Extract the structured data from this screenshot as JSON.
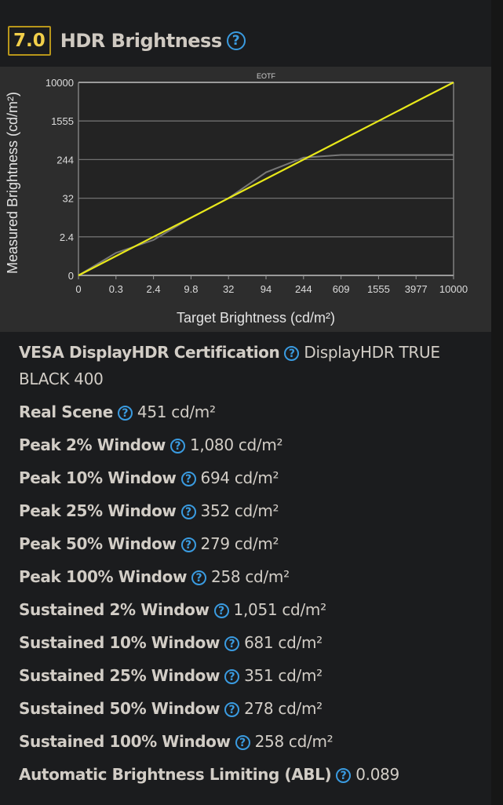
{
  "header": {
    "score": "7.0",
    "title": "HDR Brightness",
    "help_icon": "question-circle-icon"
  },
  "colors": {
    "score_border": "#b8961a",
    "score_text": "#f2cf4a",
    "help": "#3a9be0",
    "target_line": "#e8e81a",
    "measured_line": "#777777"
  },
  "chart_data": {
    "type": "line",
    "title": "EOTF",
    "xlabel": "Target Brightness (cd/m²)",
    "ylabel": "Measured Brightness (cd/m²)",
    "x_ticks": [
      "0",
      "0.3",
      "2.4",
      "9.8",
      "32",
      "94",
      "244",
      "609",
      "1555",
      "3977",
      "10000"
    ],
    "y_ticks": [
      "0",
      "2.4",
      "32",
      "244",
      "1555",
      "10000"
    ],
    "x": [
      0,
      0.3,
      2.4,
      9.8,
      32,
      94,
      244,
      609,
      1555,
      3977,
      10000
    ],
    "grid": true,
    "series": [
      {
        "values": [
          0,
          1.2,
          2.4,
          17,
          32,
          138,
          244,
          900,
          1555,
          5800,
          10000
        ],
        "color": "#e8e81a"
      },
      {
        "values": [
          0,
          1.4,
          2.2,
          17,
          32,
          174,
          310,
          400,
          400,
          400,
          400
        ],
        "color": "#777777"
      }
    ]
  },
  "rows": [
    {
      "label": "VESA DisplayHDR Certification",
      "value": "DisplayHDR TRUE BLACK 400"
    },
    {
      "label": "Real Scene",
      "value": "451 cd/m²"
    },
    {
      "label": "Peak 2% Window",
      "value": "1,080 cd/m²"
    },
    {
      "label": "Peak 10% Window",
      "value": "694 cd/m²"
    },
    {
      "label": "Peak 25% Window",
      "value": "352 cd/m²"
    },
    {
      "label": "Peak 50% Window",
      "value": "279 cd/m²"
    },
    {
      "label": "Peak 100% Window",
      "value": "258 cd/m²"
    },
    {
      "label": "Sustained 2% Window",
      "value": "1,051 cd/m²"
    },
    {
      "label": "Sustained 10% Window",
      "value": "681 cd/m²"
    },
    {
      "label": "Sustained 25% Window",
      "value": "351 cd/m²"
    },
    {
      "label": "Sustained 50% Window",
      "value": "278 cd/m²"
    },
    {
      "label": "Sustained 100% Window",
      "value": "258 cd/m²"
    },
    {
      "label": "Automatic Brightness Limiting (ABL)",
      "value": "0.089"
    }
  ]
}
